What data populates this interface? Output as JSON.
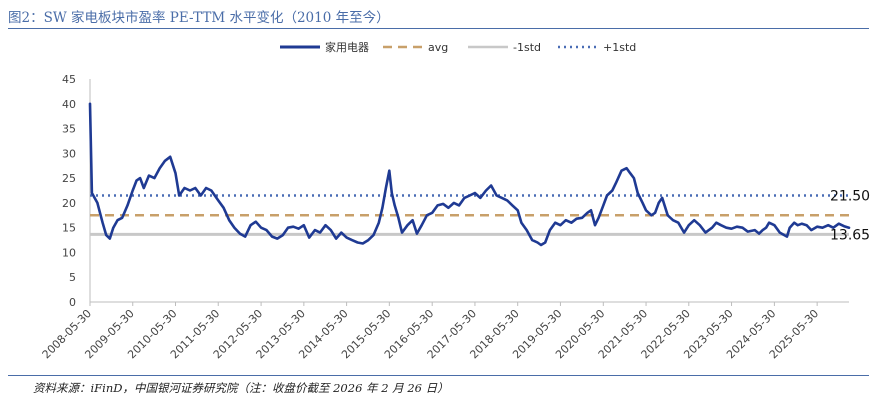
{
  "page": {
    "title": "图2：SW 家电板块市盈率 PE-TTM 水平变化（2010 年至今）",
    "source": "资料来源：iFinD，中国银河证券研究院（注：收盘价截至 2026 年 2 月 26 日）"
  },
  "chart_data": {
    "type": "line",
    "title": "图2：SW 家电板块市盈率 PE-TTM 水平变化（2010 年至今）",
    "ylim": [
      0,
      45
    ],
    "yticks": [
      0,
      5,
      10,
      15,
      20,
      25,
      30,
      35,
      40,
      45
    ],
    "xlim": [
      "2008-05-30",
      "2026-02-26"
    ],
    "xticks": [
      "2008-05-30",
      "2009-05-30",
      "2010-05-30",
      "2011-05-30",
      "2012-05-30",
      "2013-05-30",
      "2014-05-30",
      "2015-05-30",
      "2016-05-30",
      "2017-05-30",
      "2018-05-30",
      "2019-05-30",
      "2020-05-30",
      "2021-05-30",
      "2022-05-30",
      "2023-05-30",
      "2024-05-30",
      "2025-05-30"
    ],
    "grid": false,
    "legend_position": "top",
    "series": [
      {
        "name": "家用电器",
        "color": "#1f3a93",
        "style": "solid",
        "points": [
          [
            "2008-05-30",
            40.0
          ],
          [
            "2008-06-15",
            22.0
          ],
          [
            "2008-08-01",
            20.0
          ],
          [
            "2008-09-15",
            16.0
          ],
          [
            "2008-10-15",
            13.5
          ],
          [
            "2008-11-15",
            12.8
          ],
          [
            "2008-12-15",
            15.0
          ],
          [
            "2009-01-20",
            16.5
          ],
          [
            "2009-03-01",
            17.0
          ],
          [
            "2009-04-15",
            19.5
          ],
          [
            "2009-05-30",
            22.5
          ],
          [
            "2009-07-01",
            24.5
          ],
          [
            "2009-08-01",
            25.0
          ],
          [
            "2009-09-01",
            23.0
          ],
          [
            "2009-10-15",
            25.5
          ],
          [
            "2009-12-01",
            25.0
          ],
          [
            "2010-01-15",
            27.0
          ],
          [
            "2010-03-01",
            28.5
          ],
          [
            "2010-04-15",
            29.3
          ],
          [
            "2010-05-30",
            26.0
          ],
          [
            "2010-07-01",
            21.5
          ],
          [
            "2010-08-15",
            23.0
          ],
          [
            "2010-10-01",
            22.5
          ],
          [
            "2010-11-15",
            23.0
          ],
          [
            "2011-01-01",
            21.5
          ],
          [
            "2011-02-15",
            23.0
          ],
          [
            "2011-04-01",
            22.5
          ],
          [
            "2011-05-30",
            20.5
          ],
          [
            "2011-07-15",
            19.0
          ],
          [
            "2011-09-01",
            16.5
          ],
          [
            "2011-10-15",
            15.0
          ],
          [
            "2011-12-01",
            13.8
          ],
          [
            "2012-01-15",
            13.2
          ],
          [
            "2012-03-01",
            15.5
          ],
          [
            "2012-04-15",
            16.2
          ],
          [
            "2012-05-30",
            15.0
          ],
          [
            "2012-07-15",
            14.5
          ],
          [
            "2012-09-01",
            13.2
          ],
          [
            "2012-10-15",
            12.8
          ],
          [
            "2012-12-01",
            13.5
          ],
          [
            "2013-01-15",
            15.0
          ],
          [
            "2013-03-01",
            15.2
          ],
          [
            "2013-04-15",
            14.8
          ],
          [
            "2013-05-30",
            15.5
          ],
          [
            "2013-07-15",
            13.0
          ],
          [
            "2013-09-01",
            14.5
          ],
          [
            "2013-10-15",
            14.0
          ],
          [
            "2013-12-01",
            15.5
          ],
          [
            "2014-01-15",
            14.5
          ],
          [
            "2014-03-01",
            12.8
          ],
          [
            "2014-04-15",
            14.0
          ],
          [
            "2014-05-30",
            13.0
          ],
          [
            "2014-07-15",
            12.5
          ],
          [
            "2014-09-01",
            12.0
          ],
          [
            "2014-10-15",
            11.8
          ],
          [
            "2014-12-01",
            12.5
          ],
          [
            "2015-01-15",
            13.5
          ],
          [
            "2015-03-01",
            16.0
          ],
          [
            "2015-04-01",
            19.0
          ],
          [
            "2015-05-01",
            23.0
          ],
          [
            "2015-05-30",
            26.5
          ],
          [
            "2015-06-20",
            22.0
          ],
          [
            "2015-07-15",
            19.5
          ],
          [
            "2015-08-15",
            17.0
          ],
          [
            "2015-09-15",
            14.0
          ],
          [
            "2015-11-01",
            15.5
          ],
          [
            "2015-12-15",
            16.5
          ],
          [
            "2016-01-20",
            13.8
          ],
          [
            "2016-03-01",
            15.5
          ],
          [
            "2016-04-15",
            17.5
          ],
          [
            "2016-05-30",
            18.0
          ],
          [
            "2016-07-15",
            19.5
          ],
          [
            "2016-09-01",
            19.8
          ],
          [
            "2016-10-15",
            19.0
          ],
          [
            "2016-12-01",
            20.0
          ],
          [
            "2017-01-15",
            19.5
          ],
          [
            "2017-03-01",
            21.0
          ],
          [
            "2017-04-15",
            21.5
          ],
          [
            "2017-05-30",
            22.0
          ],
          [
            "2017-07-15",
            21.0
          ],
          [
            "2017-09-01",
            22.5
          ],
          [
            "2017-10-15",
            23.5
          ],
          [
            "2017-12-01",
            21.5
          ],
          [
            "2018-01-15",
            21.0
          ],
          [
            "2018-03-01",
            20.5
          ],
          [
            "2018-04-15",
            19.5
          ],
          [
            "2018-05-30",
            18.5
          ],
          [
            "2018-07-01",
            16.0
          ],
          [
            "2018-08-15",
            14.5
          ],
          [
            "2018-10-01",
            12.5
          ],
          [
            "2018-11-15",
            12.0
          ],
          [
            "2018-12-15",
            11.5
          ],
          [
            "2019-01-20",
            12.0
          ],
          [
            "2019-03-01",
            14.5
          ],
          [
            "2019-04-15",
            16.0
          ],
          [
            "2019-05-30",
            15.5
          ],
          [
            "2019-07-15",
            16.5
          ],
          [
            "2019-09-01",
            16.0
          ],
          [
            "2019-10-15",
            16.8
          ],
          [
            "2019-12-01",
            17.0
          ],
          [
            "2020-01-15",
            18.0
          ],
          [
            "2020-02-15",
            18.5
          ],
          [
            "2020-03-20",
            15.5
          ],
          [
            "2020-04-20",
            17.0
          ],
          [
            "2020-05-30",
            19.5
          ],
          [
            "2020-07-01",
            21.5
          ],
          [
            "2020-08-15",
            22.5
          ],
          [
            "2020-09-15",
            24.0
          ],
          [
            "2020-11-01",
            26.5
          ],
          [
            "2020-12-15",
            27.0
          ],
          [
            "2021-01-15",
            26.0
          ],
          [
            "2021-02-15",
            25.0
          ],
          [
            "2021-03-20",
            22.0
          ],
          [
            "2021-05-01",
            20.0
          ],
          [
            "2021-05-30",
            18.5
          ],
          [
            "2021-07-15",
            17.5
          ],
          [
            "2021-08-15",
            18.0
          ],
          [
            "2021-09-15",
            20.0
          ],
          [
            "2021-10-15",
            21.0
          ],
          [
            "2021-12-01",
            17.5
          ],
          [
            "2022-01-15",
            16.5
          ],
          [
            "2022-03-01",
            16.0
          ],
          [
            "2022-04-20",
            14.0
          ],
          [
            "2022-05-30",
            15.5
          ],
          [
            "2022-07-15",
            16.5
          ],
          [
            "2022-09-01",
            15.5
          ],
          [
            "2022-10-20",
            14.0
          ],
          [
            "2022-12-15",
            15.0
          ],
          [
            "2023-01-20",
            16.0
          ],
          [
            "2023-03-01",
            15.5
          ],
          [
            "2023-04-15",
            15.0
          ],
          [
            "2023-05-30",
            14.8
          ],
          [
            "2023-07-15",
            15.2
          ],
          [
            "2023-09-01",
            15.0
          ],
          [
            "2023-10-15",
            14.2
          ],
          [
            "2023-12-15",
            14.5
          ],
          [
            "2024-01-20",
            13.8
          ],
          [
            "2024-02-20",
            14.5
          ],
          [
            "2024-03-20",
            15.0
          ],
          [
            "2024-04-15",
            16.0
          ],
          [
            "2024-05-30",
            15.5
          ],
          [
            "2024-07-15",
            14.0
          ],
          [
            "2024-09-15",
            13.2
          ],
          [
            "2024-10-08",
            15.0
          ],
          [
            "2024-11-15",
            16.0
          ],
          [
            "2024-12-15",
            15.5
          ],
          [
            "2025-01-20",
            15.8
          ],
          [
            "2025-03-01",
            15.5
          ],
          [
            "2025-04-10",
            14.5
          ],
          [
            "2025-05-30",
            15.2
          ],
          [
            "2025-07-15",
            15.0
          ],
          [
            "2025-09-01",
            15.5
          ],
          [
            "2025-10-15",
            15.0
          ],
          [
            "2025-12-01",
            15.8
          ],
          [
            "2026-01-15",
            15.3
          ],
          [
            "2026-02-26",
            15.0
          ]
        ]
      },
      {
        "name": "avg",
        "color": "#c8a06a",
        "style": "dashed",
        "value": 17.5
      },
      {
        "name": "-1std",
        "color": "#c8c8c8",
        "style": "solid",
        "value": 13.65
      },
      {
        "name": "+1std",
        "color": "#4a6db5",
        "style": "dotted",
        "value": 21.5
      }
    ],
    "annotations": [
      {
        "text": "21.50",
        "value": 21.5
      },
      {
        "text": "13.65",
        "value": 13.65
      }
    ]
  }
}
